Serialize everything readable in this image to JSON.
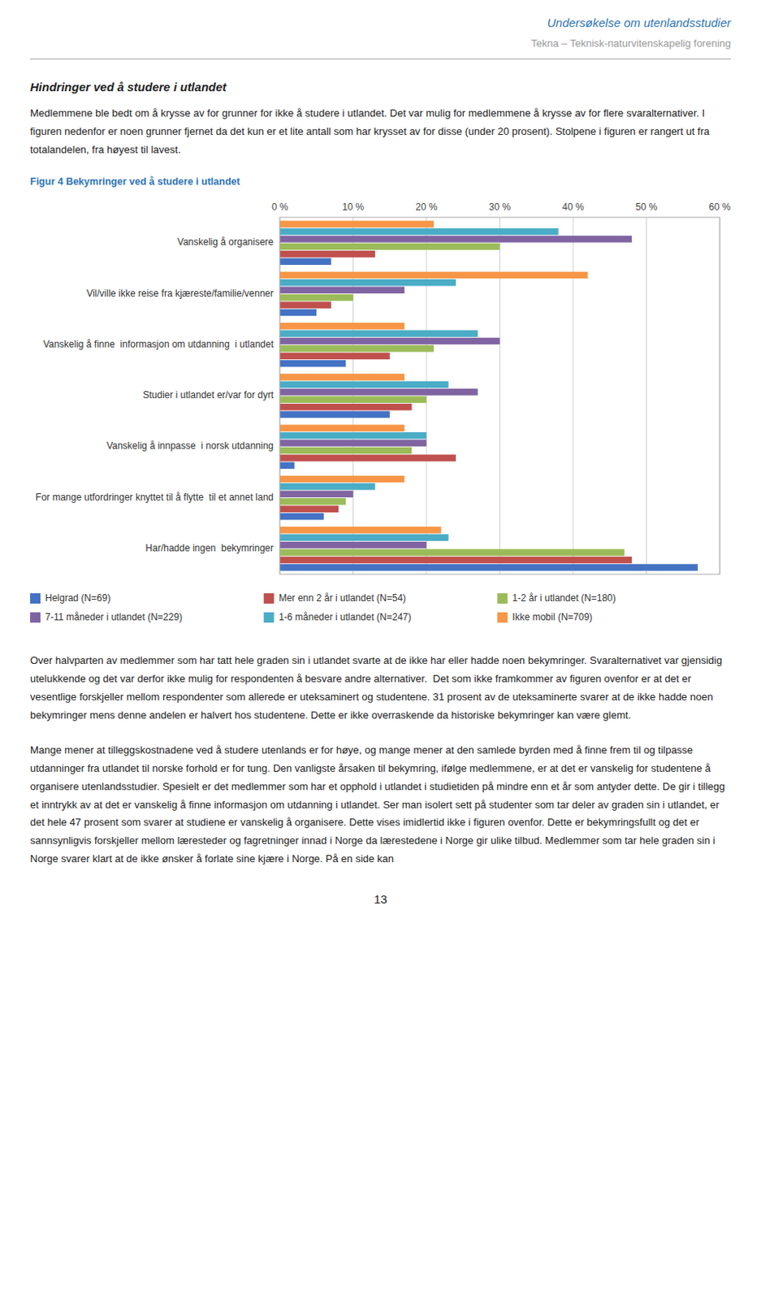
{
  "header_title": "Undersøkelse om utenlandsstudier",
  "header_subtitle": "Tekna – Teknisk-naturvitenskapelig forening",
  "section_title": "Hindringer ved å studere i utlandet",
  "body_text1": "Medlemmene ble bedt om å krysse av for grunner for ikke å studere i utlandet. Det var mulig for medlemmene å krysse av for flere svaralternativer. I figuren nedenfor er noen grunner fjernet da det kun er et lite antall som har krysset av for disse (under 20 prosent). Stolpene i figuren er rangert ut fra totalandelen, fra høyest til lavest.",
  "body_text2": "Over halvparten av medlemmer som har tatt hele graden sin i utlandet svarte at de ikke har eller hadde noen bekymringer. Svaralternativet var gjensidig utelukkende og det var derfor ikke mulig for respondenten å besvare andre alternativer.  Det som ikke framkommer av figuren ovenfor er at det er vesentlige forskjeller mellom respondenter som allerede er uteksaminert og studentene. 31 prosent av de uteksaminerte svarer at de ikke hadde noen bekymringer mens denne andelen er halvert hos studentene. Dette er ikke overraskende da historiske bekymringer kan være glemt.",
  "body_text3": "Mange mener at tilleggskostnadene ved å studere utenlands er for høye, og mange mener at den samlede byrden med å finne frem til og tilpasse utdanninger fra utlandet til norske forhold er for tung. Den vanligste årsaken til bekymring, ifølge medlemmene, er at det er vanskelig for studentene å organisere utenlandsstudier. Spesielt er det medlemmer som har et opphold i utlandet i studietiden på mindre enn et år som antyder dette. De gir i tillegg et inntrykk av at det er vanskelig å finne informasjon om utdanning i utlandet. Ser man isolert sett på studenter som tar deler av graden sin i utlandet, er det hele 47 prosent som svarer at studiene er vanskelig å organisere. Dette vises imidlertid ikke i figuren ovenfor. Dette er bekymringsfullt og det er sannsynligvis forskjeller mellom læresteder og fagretninger innad i Norge da lærestedene i Norge gir ulike tilbud. Medlemmer som tar hele graden sin i Norge svarer klart at de ikke ønsker å forlate sine kjære i Norge. På en side kan",
  "page_number": "13",
  "chart_data": {
    "type": "bar",
    "orientation": "horizontal",
    "title": "Figur 4 Bekymringer ved å studere i utlandet",
    "categories": [
      "Vanskelig å organisere",
      "Vil/ville ikke reise fra kjæreste/familie/venner",
      "Vanskelig å finne  informasjon om utdanning  i utlandet",
      "Studier i utlandet er/var for dyrt",
      "Vanskelig å innpasse  i norsk utdanning",
      "For mange utfordringer knyttet til å flytte  til et annet land",
      "Har/hadde ingen  bekymringer"
    ],
    "series": [
      {
        "name": "Helgrad (N=69)",
        "color": "#4472C4",
        "values": [
          7,
          5,
          9,
          15,
          2,
          6,
          57
        ]
      },
      {
        "name": "Mer enn 2 år i utlandet (N=54)",
        "color": "#C0504D",
        "values": [
          13,
          7,
          15,
          18,
          24,
          8,
          48
        ]
      },
      {
        "name": "1-2 år i utlandet (N=180)",
        "color": "#9BBB59",
        "values": [
          30,
          10,
          21,
          20,
          18,
          9,
          47
        ]
      },
      {
        "name": "7-11 måneder i utlandet (N=229)",
        "color": "#8064A2",
        "values": [
          48,
          17,
          30,
          27,
          20,
          10,
          20
        ]
      },
      {
        "name": "1-6 måneder i utlandet (N=247)",
        "color": "#4BACC6",
        "values": [
          38,
          24,
          27,
          23,
          20,
          13,
          23
        ]
      },
      {
        "name": "Ikke mobil (N=709)",
        "color": "#F79646",
        "values": [
          21,
          42,
          17,
          17,
          17,
          17,
          22
        ]
      }
    ],
    "xlim": [
      0,
      60
    ],
    "xticks": [
      {
        "value": 0,
        "label": "0 %"
      },
      {
        "value": 10,
        "label": "10 %"
      },
      {
        "value": 20,
        "label": "20 %"
      },
      {
        "value": 30,
        "label": "30 %"
      },
      {
        "value": 40,
        "label": "40 %"
      },
      {
        "value": 50,
        "label": "50 %"
      },
      {
        "value": 60,
        "label": "60 %"
      }
    ],
    "grid": true,
    "legend": "bottom"
  }
}
